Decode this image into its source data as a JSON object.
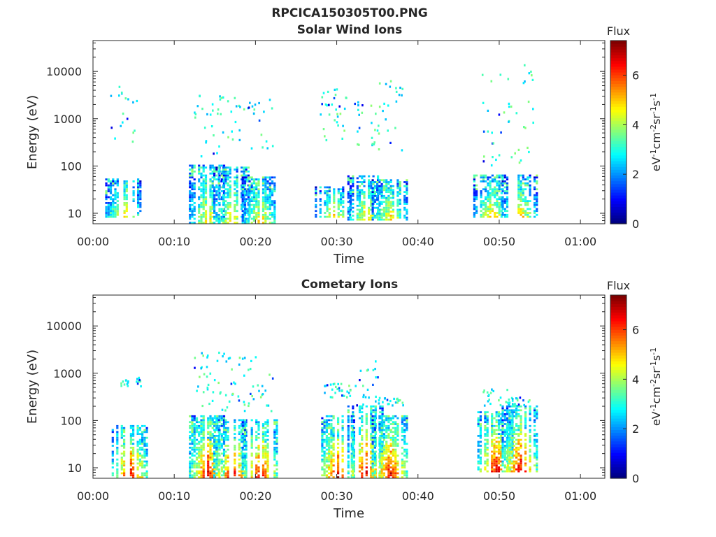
{
  "figure": {
    "title": "RPCICA150305T00.PNG"
  },
  "chart_data": [
    {
      "type": "heatmap",
      "title": "Solar Wind Ions",
      "xlabel": "Time",
      "ylabel": "Energy (eV)",
      "x_ticks": [
        "00:00",
        "00:10",
        "00:20",
        "00:30",
        "00:40",
        "00:50",
        "01:00"
      ],
      "x_range_minutes": [
        0,
        63
      ],
      "y_scale": "log",
      "y_ticks": [
        "10",
        "100",
        "1000",
        "10000"
      ],
      "y_range": [
        6,
        45000
      ],
      "colorbar": {
        "label": "Flux",
        "units": "eV-1cm-2sr-1s-1",
        "range": [
          0,
          7.4
        ],
        "ticks": [
          "0",
          "2",
          "4",
          "6"
        ],
        "colormap": "jet"
      },
      "bursts": [
        {
          "t": 3.7,
          "low_e": [
            8,
            50
          ],
          "high_e": [
            200,
            5000
          ],
          "peak_flux": 5.0
        },
        {
          "t": 14.0,
          "low_e": [
            6,
            100
          ],
          "high_e": [
            150,
            3000
          ],
          "peak_flux": 5.0
        },
        {
          "t": 17.0,
          "low_e": [
            6,
            90
          ],
          "high_e": [
            300,
            3000
          ],
          "peak_flux": 5.0
        },
        {
          "t": 20.5,
          "low_e": [
            6,
            60
          ],
          "high_e": [
            150,
            2500
          ],
          "peak_flux": 5.0
        },
        {
          "t": 29.5,
          "low_e": [
            8,
            35
          ],
          "high_e": [
            300,
            4500
          ],
          "peak_flux": 5.0
        },
        {
          "t": 33.5,
          "low_e": [
            7,
            60
          ],
          "high_e": [
            200,
            2500
          ],
          "peak_flux": 5.0
        },
        {
          "t": 36.5,
          "low_e": [
            7,
            50
          ],
          "high_e": [
            200,
            8000
          ],
          "peak_flux": 5.0
        },
        {
          "t": 49.0,
          "low_e": [
            8,
            60
          ],
          "high_e": [
            100,
            9000
          ],
          "peak_flux": 5.0
        },
        {
          "t": 52.5,
          "low_e": [
            8,
            60
          ],
          "high_e": [
            100,
            19000
          ],
          "peak_flux": 5.0
        }
      ]
    },
    {
      "type": "heatmap",
      "title": "Cometary Ions",
      "xlabel": "Time",
      "ylabel": "Energy (eV)",
      "x_ticks": [
        "00:00",
        "00:10",
        "00:20",
        "00:30",
        "00:40",
        "00:50",
        "01:00"
      ],
      "x_range_minutes": [
        0,
        63
      ],
      "y_scale": "log",
      "y_ticks": [
        "10",
        "100",
        "1000",
        "10000"
      ],
      "y_range": [
        6,
        45000
      ],
      "colorbar": {
        "label": "Flux",
        "units": "eV-1cm-2sr-1s-1",
        "range": [
          0,
          7.4
        ],
        "ticks": [
          "0",
          "2",
          "4",
          "6"
        ],
        "colormap": "jet"
      },
      "bursts": [
        {
          "t": 4.5,
          "low_e": [
            6,
            80
          ],
          "high_e": [
            500,
            800
          ],
          "peak_flux": 6.8
        },
        {
          "t": 14.0,
          "low_e": [
            6,
            120
          ],
          "high_e": [
            150,
            2800
          ],
          "peak_flux": 6.8
        },
        {
          "t": 17.0,
          "low_e": [
            6,
            100
          ],
          "high_e": [
            150,
            2800
          ],
          "peak_flux": 6.8
        },
        {
          "t": 20.5,
          "low_e": [
            6,
            100
          ],
          "high_e": [
            150,
            2400
          ],
          "peak_flux": 6.8
        },
        {
          "t": 30.0,
          "low_e": [
            6,
            120
          ],
          "high_e": [
            300,
            600
          ],
          "peak_flux": 6.8
        },
        {
          "t": 33.5,
          "low_e": [
            6,
            200
          ],
          "high_e": [
            200,
            2200
          ],
          "peak_flux": 6.8
        },
        {
          "t": 36.5,
          "low_e": [
            6,
            120
          ],
          "high_e": [
            200,
            300
          ],
          "peak_flux": 6.8
        },
        {
          "t": 49.5,
          "low_e": [
            8,
            150
          ],
          "high_e": [
            200,
            450
          ],
          "peak_flux": 6.8
        },
        {
          "t": 52.5,
          "low_e": [
            8,
            200
          ],
          "high_e": [
            200,
            300
          ],
          "peak_flux": 6.8
        }
      ]
    }
  ]
}
